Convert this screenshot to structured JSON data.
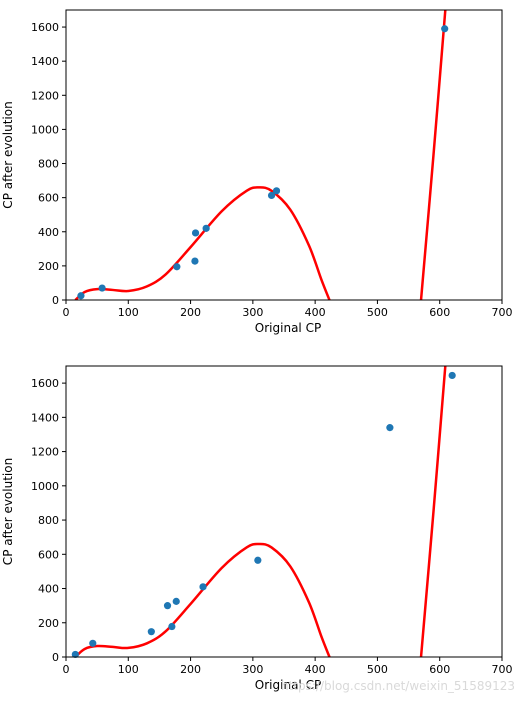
{
  "chart_data": [
    {
      "type": "scatter",
      "xlabel": "Original CP",
      "ylabel": "CP after evolution",
      "xlim": [
        0,
        700
      ],
      "ylim": [
        0,
        1700
      ],
      "xticks": [
        "0",
        "100",
        "200",
        "300",
        "400",
        "500",
        "600",
        "700"
      ],
      "yticks": [
        "0",
        "200",
        "400",
        "600",
        "800",
        "1000",
        "1200",
        "1400",
        "1600"
      ],
      "grid": false,
      "points": [
        {
          "x": 24,
          "y": 25
        },
        {
          "x": 58,
          "y": 70
        },
        {
          "x": 178,
          "y": 195
        },
        {
          "x": 207,
          "y": 228
        },
        {
          "x": 208,
          "y": 393
        },
        {
          "x": 225,
          "y": 420
        },
        {
          "x": 330,
          "y": 613
        },
        {
          "x": 338,
          "y": 640
        },
        {
          "x": 608,
          "y": 1590
        }
      ],
      "curve_anchors": [
        {
          "x": 15,
          "y": 0
        },
        {
          "x": 30,
          "y": 47
        },
        {
          "x": 50,
          "y": 64
        },
        {
          "x": 75,
          "y": 59
        },
        {
          "x": 100,
          "y": 53
        },
        {
          "x": 130,
          "y": 80
        },
        {
          "x": 160,
          "y": 150
        },
        {
          "x": 200,
          "y": 310
        },
        {
          "x": 250,
          "y": 520
        },
        {
          "x": 290,
          "y": 640
        },
        {
          "x": 310,
          "y": 660
        },
        {
          "x": 330,
          "y": 640
        },
        {
          "x": 360,
          "y": 530
        },
        {
          "x": 390,
          "y": 320
        },
        {
          "x": 410,
          "y": 120
        },
        {
          "x": 423,
          "y": 0
        }
      ],
      "curve_right": [
        {
          "x": 570,
          "y": 0
        },
        {
          "x": 590,
          "y": 850
        },
        {
          "x": 609,
          "y": 1700
        }
      ],
      "point_color": "#1f77b4",
      "curve_color": "#ff0000"
    },
    {
      "type": "scatter",
      "xlabel": "Original CP",
      "ylabel": "CP after evolution",
      "xlim": [
        0,
        700
      ],
      "ylim": [
        0,
        1700
      ],
      "xticks": [
        "0",
        "100",
        "200",
        "300",
        "400",
        "500",
        "600",
        "700"
      ],
      "yticks": [
        "0",
        "200",
        "400",
        "600",
        "800",
        "1000",
        "1200",
        "1400",
        "1600"
      ],
      "grid": false,
      "points": [
        {
          "x": 15,
          "y": 15
        },
        {
          "x": 43,
          "y": 80
        },
        {
          "x": 137,
          "y": 148
        },
        {
          "x": 163,
          "y": 300
        },
        {
          "x": 170,
          "y": 178
        },
        {
          "x": 177,
          "y": 325
        },
        {
          "x": 220,
          "y": 410
        },
        {
          "x": 308,
          "y": 565
        },
        {
          "x": 520,
          "y": 1340
        },
        {
          "x": 620,
          "y": 1645
        }
      ],
      "curve_anchors": [
        {
          "x": 15,
          "y": 0
        },
        {
          "x": 30,
          "y": 47
        },
        {
          "x": 50,
          "y": 64
        },
        {
          "x": 75,
          "y": 59
        },
        {
          "x": 100,
          "y": 53
        },
        {
          "x": 130,
          "y": 80
        },
        {
          "x": 160,
          "y": 150
        },
        {
          "x": 200,
          "y": 310
        },
        {
          "x": 250,
          "y": 520
        },
        {
          "x": 290,
          "y": 640
        },
        {
          "x": 310,
          "y": 660
        },
        {
          "x": 330,
          "y": 640
        },
        {
          "x": 360,
          "y": 530
        },
        {
          "x": 390,
          "y": 320
        },
        {
          "x": 410,
          "y": 120
        },
        {
          "x": 423,
          "y": 0
        }
      ],
      "curve_right": [
        {
          "x": 570,
          "y": 0
        },
        {
          "x": 590,
          "y": 850
        },
        {
          "x": 609,
          "y": 1700
        }
      ],
      "point_color": "#1f77b4",
      "curve_color": "#ff0000"
    }
  ],
  "watermark": "https://blog.csdn.net/weixin_51589123"
}
